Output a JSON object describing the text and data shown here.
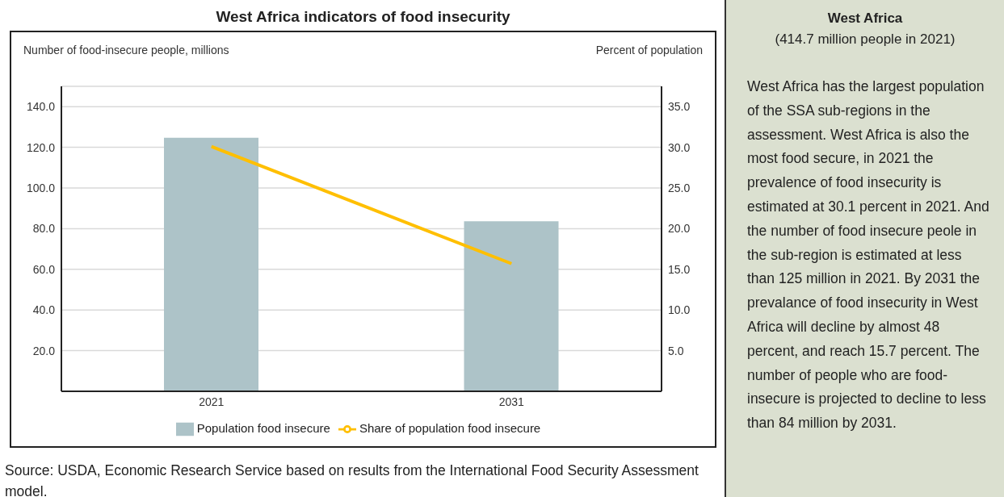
{
  "chart_data": [
    {
      "type": "bar",
      "title": "West Africa indicators of food insecurity",
      "ylabel": "Number of food-insecure people, millions",
      "y2label": "Percent of population",
      "categories": [
        "2021",
        "2031"
      ],
      "series": [
        {
          "name": "Population food insecure",
          "type": "bar",
          "color": "#adc3c8",
          "values": [
            124.7,
            83.6
          ]
        },
        {
          "name": "Share of population food insecure",
          "type": "line",
          "axis": "y2",
          "color": "#ffbf00",
          "values": [
            30.1,
            15.7
          ]
        }
      ],
      "ylim": [
        0,
        150
      ],
      "yticks": [
        {
          "value": 20,
          "label": "20.0"
        },
        {
          "value": 40,
          "label": "40.0"
        },
        {
          "value": 60,
          "label": "60.0"
        },
        {
          "value": 80,
          "label": "80.0"
        },
        {
          "value": 100,
          "label": "100.0"
        },
        {
          "value": 120,
          "label": "120.0"
        },
        {
          "value": 140,
          "label": "140.0"
        }
      ],
      "y2lim": [
        0,
        37.5
      ],
      "y2ticks": [
        {
          "value": 5,
          "label": "5.0"
        },
        {
          "value": 10,
          "label": "10.0"
        },
        {
          "value": 15,
          "label": "15.0"
        },
        {
          "value": 20,
          "label": "20.0"
        },
        {
          "value": 25,
          "label": "25.0"
        },
        {
          "value": 30,
          "label": "30.0"
        },
        {
          "value": 35,
          "label": "35.0"
        }
      ],
      "grid": "y",
      "legend": "bottom",
      "marker": "none",
      "line_style": "solid",
      "annotations": [
        "Source: USDA, Economic Research Service based on results from the International Food Security Assessment model."
      ]
    },
    {
      "type": "other",
      "title": "West Africa",
      "subtitle": "(414.7 million people in 2021)",
      "annotations": [
        "West Africa has the largest population of the SSA sub-regions in the assessment. West Africa is also the most food secure, in 2021 the prevalence of food insecurity is estimated at 30.1 percent in 2021. And the number of food insecure peole in the sub-region is estimated at less than 125 million in 2021. By 2031 the prevalance of food insecurity in West Africa will decline by almost 48 percent, and reach 15.7 percent. The number of people who are food-insecure is projected to decline to less than 84 million by 2031."
      ]
    }
  ]
}
